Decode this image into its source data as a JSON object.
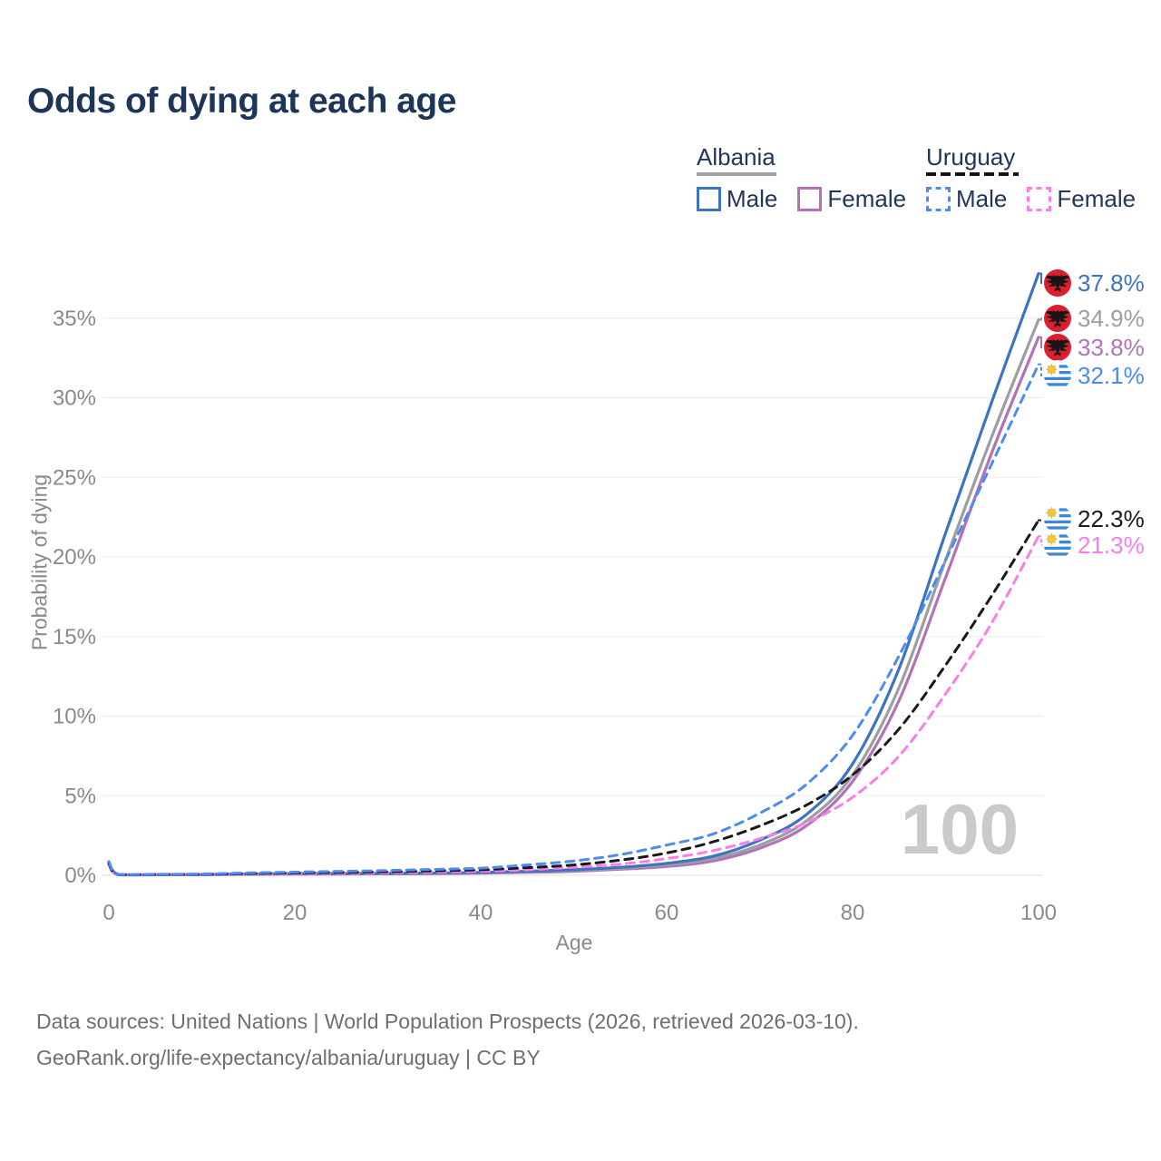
{
  "title": "Odds of dying at each age",
  "legend": {
    "groups": [
      {
        "country": "Albania",
        "style": "solid",
        "items": [
          {
            "label": "Male",
            "series": "albania_male"
          },
          {
            "label": "Female",
            "series": "albania_female"
          }
        ]
      },
      {
        "country": "Uruguay",
        "style": "dashed",
        "items": [
          {
            "label": "Male",
            "series": "uruguay_male"
          },
          {
            "label": "Female",
            "series": "uruguay_female"
          }
        ]
      }
    ]
  },
  "axes": {
    "x_label": "Age",
    "y_label": "Probability of dying",
    "x_ticks": [
      "0",
      "20",
      "40",
      "60",
      "80",
      "100"
    ],
    "x_tick_values": [
      0,
      20,
      40,
      60,
      80,
      100
    ],
    "y_ticks": [
      "0%",
      "5%",
      "10%",
      "15%",
      "20%",
      "25%",
      "30%",
      "35%"
    ],
    "y_tick_values": [
      0,
      5,
      10,
      15,
      20,
      25,
      30,
      35
    ]
  },
  "hover_age_watermark": "100",
  "footer": {
    "line1": "Data sources: United Nations | World Population Prospects (2026, retrieved 2026-03-10).",
    "line2": "GeoRank.org/life-expectancy/albania/uruguay | CC BY"
  },
  "colors": {
    "title": "#1d3557",
    "axis_text": "#8a8a8a",
    "grid": "#efefef",
    "grid_zero": "#e3e3e3",
    "watermark": "#c8cacc",
    "footer_text": "#6f6f6f",
    "albania_male": "#3d74c0",
    "albania_female": "#b273b6",
    "albania_total": "#9c9ea1",
    "uruguay_male": "#4a8cf0",
    "uruguay_female": "#fb7de8",
    "uruguay_total": "#1a1a1a",
    "albania_flag_red": "#dc1f2e",
    "albania_flag_eagle": "#151515",
    "uruguay_flag_blue": "#3b87dd",
    "uruguay_sun_yellow": "#f5c63c"
  },
  "chart_data": {
    "type": "line",
    "title": "Odds of dying at each age",
    "xlabel": "Age",
    "ylabel": "Probability of dying",
    "x_range": [
      0,
      100
    ],
    "y_range_percent": [
      0,
      38
    ],
    "grid": "horizontal",
    "legend_position": "top-right",
    "hovered_x": 100,
    "x": [
      0,
      1,
      5,
      10,
      15,
      20,
      25,
      30,
      35,
      40,
      45,
      50,
      55,
      60,
      65,
      70,
      75,
      80,
      85,
      90,
      95,
      100
    ],
    "series": [
      {
        "id": "albania_male",
        "country": "Albania",
        "sex": "Male",
        "style": "solid",
        "color": "#3d74c0",
        "end_label": "37.8%",
        "end_value_percent": 37.8,
        "flag": "albania",
        "values_percent": [
          0.85,
          0.06,
          0.04,
          0.05,
          0.08,
          0.1,
          0.11,
          0.12,
          0.14,
          0.18,
          0.25,
          0.35,
          0.5,
          0.75,
          1.2,
          2.2,
          3.8,
          7.0,
          13.0,
          21.5,
          29.8,
          37.8
        ]
      },
      {
        "id": "albania_total",
        "country": "Albania",
        "sex": "Both",
        "style": "solid",
        "color": "#9c9ea1",
        "end_label": "34.9%",
        "end_value_percent": 34.9,
        "flag": "albania",
        "values_percent": [
          0.78,
          0.05,
          0.04,
          0.04,
          0.07,
          0.09,
          0.1,
          0.11,
          0.12,
          0.16,
          0.22,
          0.3,
          0.45,
          0.65,
          1.05,
          1.9,
          3.4,
          6.3,
          11.8,
          19.8,
          27.6,
          34.9
        ]
      },
      {
        "id": "albania_female",
        "country": "Albania",
        "sex": "Female",
        "style": "solid",
        "color": "#b273b6",
        "end_label": "33.8%",
        "end_value_percent": 33.8,
        "flag": "albania",
        "values_percent": [
          0.7,
          0.05,
          0.03,
          0.04,
          0.06,
          0.07,
          0.08,
          0.09,
          0.1,
          0.13,
          0.18,
          0.25,
          0.38,
          0.55,
          0.9,
          1.7,
          3.1,
          5.9,
          11.0,
          18.7,
          26.6,
          33.8
        ]
      },
      {
        "id": "uruguay_male",
        "country": "Uruguay",
        "sex": "Male",
        "style": "dashed",
        "color": "#4a8cf0",
        "end_label": "32.1%",
        "end_value_percent": 32.1,
        "flag": "uruguay",
        "values_percent": [
          0.85,
          0.06,
          0.06,
          0.08,
          0.15,
          0.2,
          0.25,
          0.3,
          0.37,
          0.45,
          0.65,
          0.9,
          1.3,
          1.9,
          2.6,
          3.9,
          5.7,
          8.8,
          13.8,
          19.8,
          25.9,
          32.1
        ]
      },
      {
        "id": "uruguay_total",
        "country": "Uruguay",
        "sex": "Both",
        "style": "dashed",
        "color": "#1a1a1a",
        "end_label": "22.3%",
        "end_value_percent": 22.3,
        "flag": "uruguay",
        "values_percent": [
          0.75,
          0.05,
          0.05,
          0.06,
          0.11,
          0.15,
          0.18,
          0.22,
          0.28,
          0.35,
          0.48,
          0.65,
          0.95,
          1.4,
          2.1,
          3.1,
          4.4,
          6.3,
          9.2,
          13.2,
          17.6,
          22.3
        ]
      },
      {
        "id": "uruguay_female",
        "country": "Uruguay",
        "sex": "Female",
        "style": "dashed",
        "color": "#fb7de8",
        "end_label": "21.3%",
        "end_value_percent": 21.3,
        "flag": "uruguay",
        "values_percent": [
          0.65,
          0.04,
          0.04,
          0.05,
          0.08,
          0.1,
          0.12,
          0.15,
          0.19,
          0.25,
          0.35,
          0.5,
          0.7,
          1.05,
          1.55,
          2.3,
          3.3,
          4.9,
          7.5,
          11.4,
          15.9,
          21.3
        ]
      }
    ]
  }
}
